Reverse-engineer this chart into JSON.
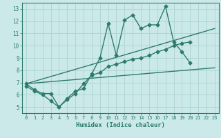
{
  "xlabel": "Humidex (Indice chaleur)",
  "xlim": [
    -0.5,
    23.5
  ],
  "ylim": [
    4.5,
    13.5
  ],
  "xticks": [
    0,
    1,
    2,
    3,
    4,
    5,
    6,
    7,
    8,
    9,
    10,
    11,
    12,
    13,
    14,
    15,
    16,
    17,
    18,
    19,
    20,
    21,
    22,
    23
  ],
  "yticks": [
    5,
    6,
    7,
    8,
    9,
    10,
    11,
    12,
    13
  ],
  "background_color": "#cce9e9",
  "line_color": "#2d7b6e",
  "grid_color": "#b0d5d5",
  "lines": [
    {
      "x": [
        0,
        1,
        2,
        3,
        4,
        5,
        6,
        7,
        8,
        9,
        10,
        11,
        12,
        13,
        14,
        15,
        16,
        17,
        18,
        19,
        20
      ],
      "y": [
        6.9,
        6.4,
        6.1,
        6.1,
        5.0,
        5.7,
        6.3,
        6.5,
        7.7,
        9.0,
        11.8,
        9.2,
        12.1,
        12.5,
        11.4,
        11.7,
        11.7,
        13.2,
        10.3,
        9.5,
        8.6
      ],
      "marker": "D",
      "markersize": 2.5,
      "linewidth": 1.0
    },
    {
      "x": [
        0,
        1,
        2,
        3,
        4,
        5,
        6,
        7,
        8,
        9,
        10,
        11,
        12,
        13,
        14,
        15,
        16,
        17,
        18,
        19,
        20,
        21,
        22,
        23
      ],
      "y": [
        6.7,
        6.3,
        6.0,
        5.5,
        5.0,
        5.6,
        6.1,
        6.9,
        7.6,
        7.8,
        8.3,
        8.5,
        8.7,
        8.9,
        9.0,
        9.2,
        9.5,
        9.7,
        10.0,
        10.2,
        10.3,
        null,
        null,
        null
      ],
      "marker": "D",
      "markersize": 2.5,
      "linewidth": 1.0
    },
    {
      "x": [
        0,
        23
      ],
      "y": [
        6.9,
        8.2
      ],
      "marker": null,
      "markersize": 0,
      "linewidth": 1.0
    },
    {
      "x": [
        0,
        23
      ],
      "y": [
        6.9,
        11.4
      ],
      "marker": null,
      "markersize": 0,
      "linewidth": 1.0
    }
  ]
}
